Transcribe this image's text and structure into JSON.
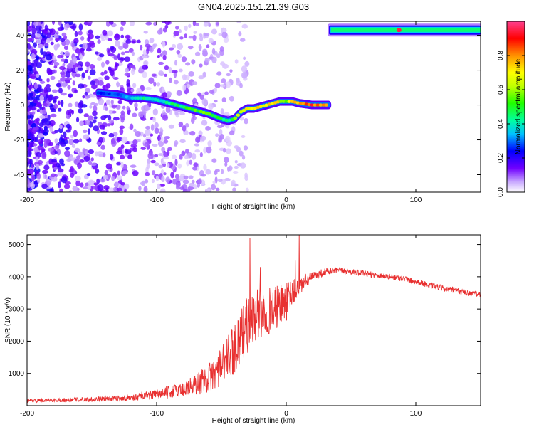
{
  "figure_title": "GN04.2025.151.21.39.G03",
  "chart_data": [
    {
      "type": "heatmap",
      "xlabel": "Height of straight line (km)",
      "ylabel": "Frequency (Hz)",
      "xlim": [
        -200,
        150
      ],
      "ylim": [
        -50,
        48
      ],
      "xticks": [
        -200,
        -100,
        0,
        100
      ],
      "yticks": [
        -40,
        -20,
        0,
        20,
        40
      ],
      "colorbar": {
        "label": "Normalized spectral amplitude",
        "range": [
          0,
          1
        ],
        "ticks": [
          "0.0",
          "0.2",
          "0.4",
          "0.6",
          "0.8"
        ],
        "colormap": [
          "#ffffff",
          "#b080ff",
          "#6000ff",
          "#0000ff",
          "#00e0ff",
          "#00ff40",
          "#c0ff00",
          "#ffff00",
          "#ff8000",
          "#ff0000",
          "#ff40c0"
        ]
      },
      "ridge": {
        "x": [
          -145,
          -130,
          -120,
          -110,
          -100,
          -90,
          -80,
          -70,
          -60,
          -50,
          -45,
          -40,
          -35,
          -30,
          -25,
          -20,
          -15,
          -10,
          -5,
          0,
          5,
          10,
          20,
          33
        ],
        "y": [
          7,
          6,
          4,
          4,
          3,
          1,
          -1,
          -3,
          -5,
          -8,
          -9,
          -8,
          -4,
          -2,
          -2,
          -1,
          0,
          1,
          2,
          2,
          2,
          1,
          0,
          0
        ],
        "amplitude": [
          0.25,
          0.3,
          0.35,
          0.45,
          0.4,
          0.45,
          0.5,
          0.55,
          0.6,
          0.5,
          0.45,
          0.55,
          0.7,
          0.75,
          0.8,
          0.75,
          0.8,
          0.75,
          0.7,
          0.55,
          0.8,
          0.85,
          0.9,
          0.9
        ]
      },
      "upper_band": {
        "x_range": [
          33,
          150
        ],
        "y": 43,
        "amplitude": 0.45,
        "peak_x": 87,
        "peak_amplitude": 0.95
      },
      "noise_region": {
        "x_range": [
          -200,
          -30
        ],
        "y_range": [
          -50,
          48
        ],
        "amplitude": 0.15
      }
    },
    {
      "type": "line",
      "xlabel": "Height of straight line (km)",
      "ylabel": "SNR (10 * v/v)",
      "xlim": [
        -200,
        150
      ],
      "ylim": [
        0,
        5300
      ],
      "xticks": [
        -200,
        -100,
        0,
        100
      ],
      "yticks": [
        1000,
        2000,
        3000,
        4000,
        5000
      ],
      "series": [
        {
          "color": "#e83030",
          "x": [
            -200,
            -180,
            -160,
            -140,
            -120,
            -100,
            -80,
            -70,
            -60,
            -50,
            -45,
            -40,
            -35,
            -30,
            -25,
            -20,
            -15,
            -10,
            -5,
            0,
            5,
            10,
            20,
            30,
            40,
            50,
            60,
            70,
            80,
            90,
            100,
            110,
            120,
            130,
            140,
            150
          ],
          "y": [
            150,
            170,
            190,
            210,
            250,
            350,
            500,
            650,
            850,
            1200,
            1500,
            1800,
            2200,
            2500,
            2700,
            2900,
            2900,
            3000,
            3100,
            3200,
            3500,
            3700,
            4000,
            4150,
            4200,
            4150,
            4100,
            4050,
            4000,
            3950,
            3850,
            3750,
            3650,
            3580,
            3500,
            3450
          ],
          "noise": [
            60,
            60,
            70,
            80,
            100,
            150,
            250,
            350,
            450,
            600,
            700,
            800,
            900,
            900,
            850,
            800,
            750,
            700,
            650,
            600,
            450,
            300,
            150,
            120,
            100,
            90,
            90,
            90,
            90,
            90,
            90,
            90,
            90,
            90,
            90,
            90
          ],
          "spikes": [
            {
              "x": -28,
              "y": 5200
            },
            {
              "x": -20,
              "y": 4300
            },
            {
              "x": 10,
              "y": 5300
            },
            {
              "x": 7,
              "y": 4500
            }
          ]
        }
      ]
    }
  ]
}
